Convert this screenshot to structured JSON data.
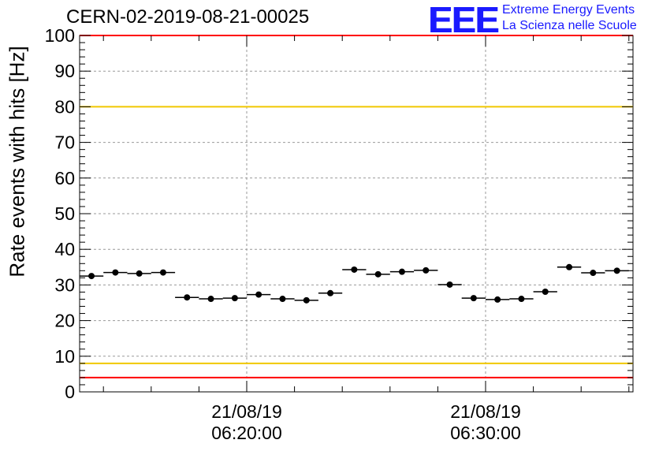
{
  "title": "CERN-02-2019-08-21-00025",
  "logo": {
    "mark": "EEE",
    "line1": "Extreme Energy Events",
    "line2": "La Scienza nelle Scuole",
    "color": "#1a1aff"
  },
  "chart_data": {
    "type": "scatter",
    "title": "CERN-02-2019-08-21-00025",
    "ylabel": "Rate events with hits [Hz]",
    "xlabel": "",
    "ylim": [
      0,
      100
    ],
    "yticks": [
      "0",
      "10",
      "20",
      "30",
      "40",
      "50",
      "60",
      "70",
      "80",
      "90",
      "100"
    ],
    "xtick_labels": [
      {
        "date": "21/08/19",
        "time": "06:20:00"
      },
      {
        "date": "21/08/19",
        "time": "06:30:00"
      }
    ],
    "grid": true,
    "reference_lines": [
      {
        "value": 100,
        "color": "#ff0000"
      },
      {
        "value": 80,
        "color": "#f0c800"
      },
      {
        "value": 8,
        "color": "#f0c800"
      },
      {
        "value": 4,
        "color": "#ff0000"
      }
    ],
    "series": [
      {
        "marker_color": "#000000",
        "points": [
          {
            "time": "06:13:30",
            "value": 32.5
          },
          {
            "time": "06:14:30",
            "value": 33.5
          },
          {
            "time": "06:15:30",
            "value": 33.2
          },
          {
            "time": "06:16:30",
            "value": 33.5
          },
          {
            "time": "06:17:30",
            "value": 26.5
          },
          {
            "time": "06:18:30",
            "value": 26.1
          },
          {
            "time": "06:19:30",
            "value": 26.3
          },
          {
            "time": "06:20:30",
            "value": 27.3
          },
          {
            "time": "06:21:30",
            "value": 26.1
          },
          {
            "time": "06:22:30",
            "value": 25.7
          },
          {
            "time": "06:23:30",
            "value": 27.7
          },
          {
            "time": "06:24:30",
            "value": 34.3
          },
          {
            "time": "06:25:30",
            "value": 33.0
          },
          {
            "time": "06:26:30",
            "value": 33.7
          },
          {
            "time": "06:27:30",
            "value": 34.1
          },
          {
            "time": "06:28:30",
            "value": 30.1
          },
          {
            "time": "06:29:30",
            "value": 26.3
          },
          {
            "time": "06:30:30",
            "value": 25.9
          },
          {
            "time": "06:31:30",
            "value": 26.1
          },
          {
            "time": "06:32:30",
            "value": 28.1
          },
          {
            "time": "06:33:30",
            "value": 35.0
          },
          {
            "time": "06:34:30",
            "value": 33.4
          },
          {
            "time": "06:35:30",
            "value": 34.0
          }
        ]
      }
    ]
  }
}
